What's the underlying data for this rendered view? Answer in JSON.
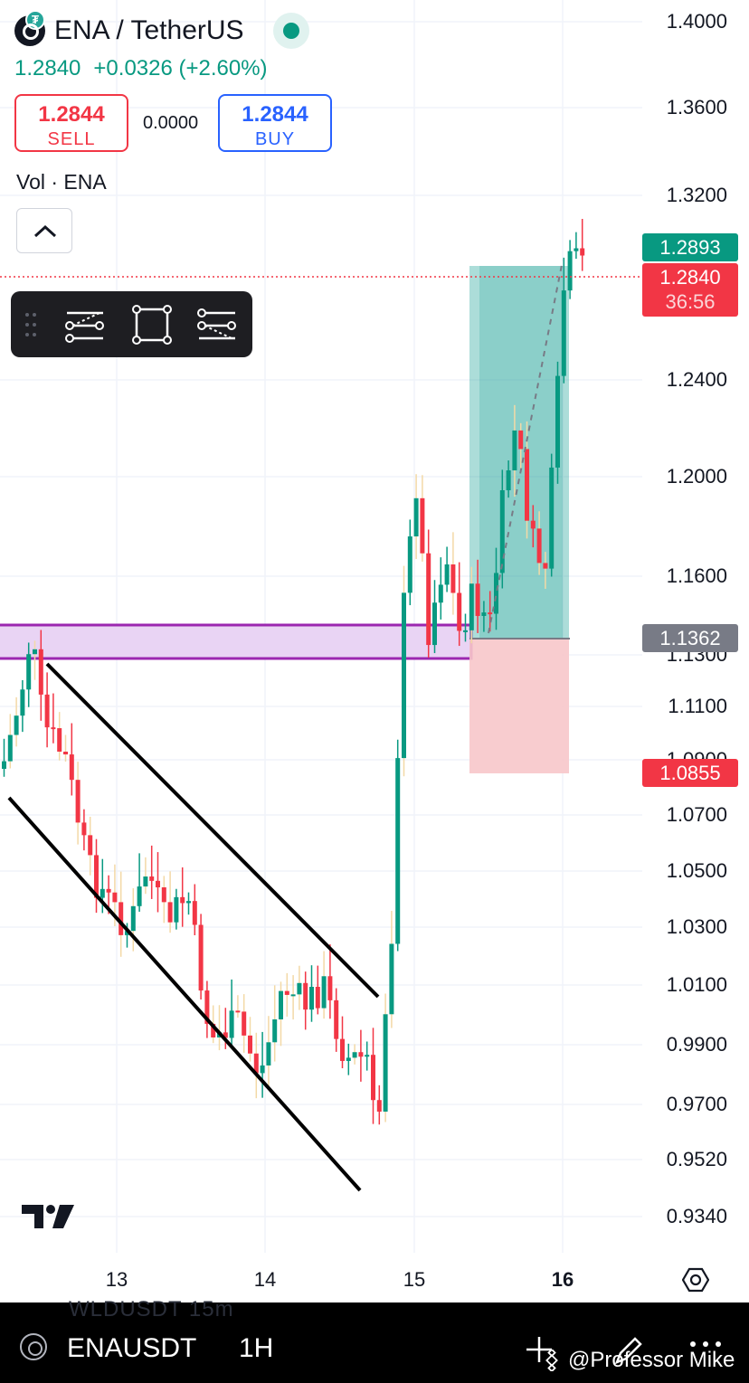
{
  "header": {
    "symbol_title": "ENA / TetherUS",
    "last_price": "1.2840",
    "change": "+0.0326 (+2.60%)",
    "live_indicator_color": "#089981",
    "base_icon": "ena-coin-icon",
    "quote_icon": "tether-icon"
  },
  "trade": {
    "sell_price": "1.2844",
    "sell_label": "SELL",
    "spread": "0.0000",
    "buy_price": "1.2844",
    "buy_label": "BUY"
  },
  "volume_legend": "Vol · ENA",
  "drawing_toolbar": {
    "tools": [
      "grip-handle-icon",
      "long-position-icon",
      "rectangle-icon",
      "short-position-icon"
    ]
  },
  "price_axis": {
    "ticks": [
      "1.4000",
      "1.3600",
      "1.3200",
      "1.2400",
      "1.2000",
      "1.1600",
      "1.1300",
      "1.1100",
      "1.0900",
      "1.0700",
      "1.0500",
      "1.0300",
      "1.0100",
      "0.9900",
      "0.9700",
      "0.9520",
      "0.9340"
    ],
    "labels": {
      "high_tag": "1.2893",
      "current_price": "1.2840",
      "countdown": "36:56",
      "entry": "1.1362",
      "stop": "1.0855"
    }
  },
  "time_axis": {
    "ticks": [
      "13",
      "14",
      "15",
      "16"
    ]
  },
  "bottom_bar": {
    "symbol": "ENAUSDT",
    "interval": "1H",
    "watermark": "@Professor Mike",
    "ghost_text": "WLDUSDT   15m"
  },
  "colors": {
    "up": "#089981",
    "down": "#f23645",
    "wick_ghost": "#f3d9a6",
    "zone_fill": "#e9d4f4",
    "zone_border": "#9c27b0",
    "profit_fill": "#26a69a",
    "loss_fill": "#f7c6ca"
  }
}
